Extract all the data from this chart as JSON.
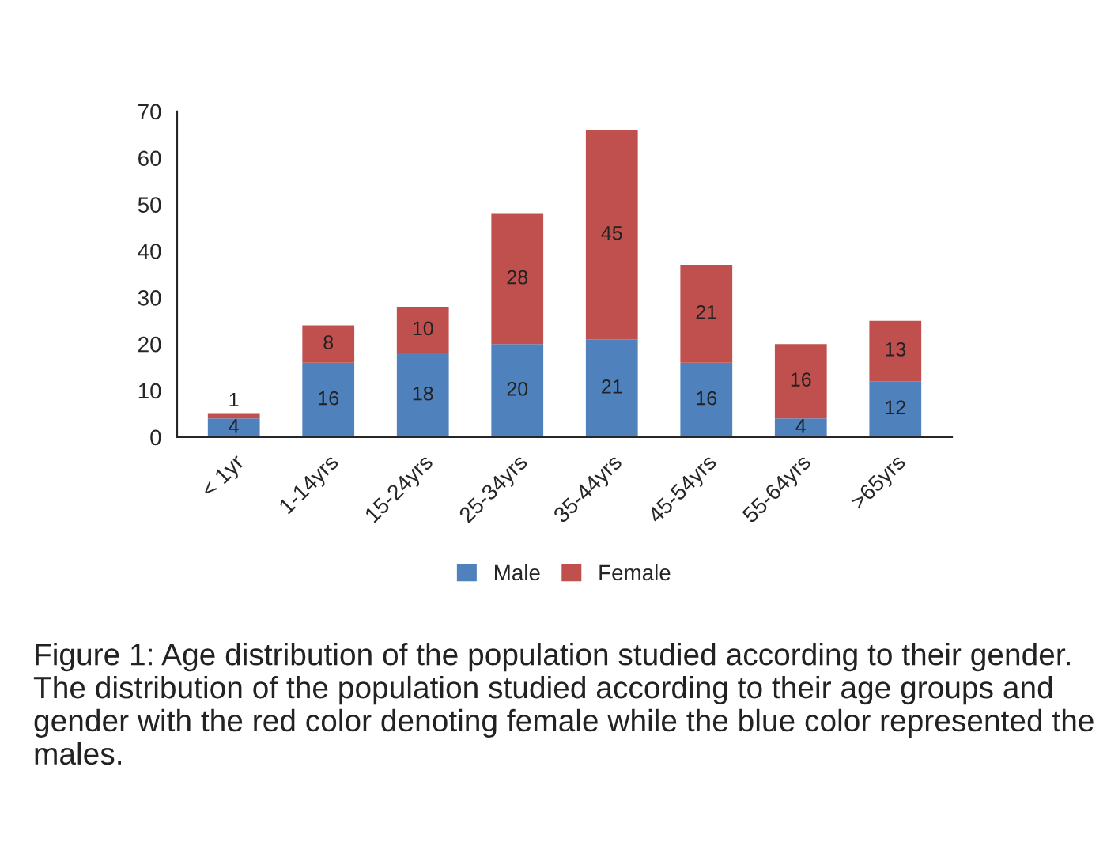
{
  "chart_data": {
    "type": "bar",
    "stacked": true,
    "categories": [
      "< 1yr",
      "1-14yrs",
      "15-24yrs",
      "25-34yrs",
      "35-44yrs",
      "45-54yrs",
      "55-64yrs",
      ">65yrs"
    ],
    "series": [
      {
        "name": "Male",
        "color": "#4f81bd",
        "values": [
          4,
          16,
          18,
          20,
          21,
          16,
          4,
          12
        ]
      },
      {
        "name": "Female",
        "color": "#c0504d",
        "values": [
          1,
          8,
          10,
          28,
          45,
          21,
          16,
          13
        ]
      }
    ],
    "ylim": [
      0,
      70
    ],
    "yticks": [
      0,
      10,
      20,
      30,
      40,
      50,
      60,
      70
    ],
    "data_labels": true,
    "legend": "bottom",
    "grid": false,
    "annotations": [
      "Figure 1: Age distribution of the population studied according to their gender. The distribution of the population studied according to their age groups and gender with the red color denoting female while the blue color represented the males."
    ]
  }
}
